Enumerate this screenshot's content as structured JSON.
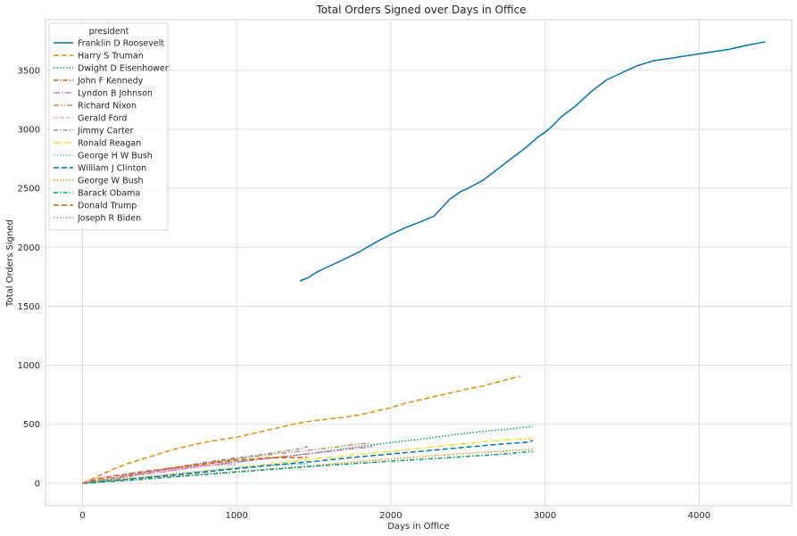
{
  "chart_data": {
    "type": "line",
    "title": "Total Orders Signed over Days in Office",
    "xlabel": "Days in Office",
    "ylabel": "Total Orders Signed",
    "xlim": [
      -240,
      4600
    ],
    "ylim": [
      -190,
      3930
    ],
    "xticks": [
      0,
      1000,
      2000,
      3000,
      4000
    ],
    "yticks": [
      0,
      500,
      1000,
      1500,
      2000,
      2500,
      3000,
      3500
    ],
    "grid": true,
    "legend": {
      "title": "president",
      "placement": "upper-left"
    },
    "series": [
      {
        "name": "Franklin D Roosevelt",
        "color": "#0173b2",
        "dash": "solid",
        "x": [
          1410,
          1460,
          1520,
          1600,
          1700,
          1800,
          1900,
          2000,
          2100,
          2200,
          2280,
          2320,
          2380,
          2450,
          2500,
          2600,
          2700,
          2800,
          2880,
          2950,
          3000,
          3050,
          3100,
          3200,
          3300,
          3400,
          3500,
          3600,
          3700,
          3800,
          3900,
          4000,
          4100,
          4200,
          4300,
          4400,
          4430
        ],
        "y": [
          1715,
          1740,
          1790,
          1840,
          1900,
          1965,
          2040,
          2110,
          2170,
          2220,
          2265,
          2320,
          2405,
          2470,
          2500,
          2570,
          2670,
          2770,
          2850,
          2930,
          2975,
          3030,
          3100,
          3200,
          3320,
          3420,
          3480,
          3540,
          3580,
          3600,
          3620,
          3640,
          3660,
          3680,
          3710,
          3735,
          3740
        ]
      },
      {
        "name": "Harry S Truman",
        "color": "#de8f05",
        "dash": "6,3",
        "x": [
          0,
          50,
          100,
          200,
          300,
          400,
          500,
          600,
          700,
          800,
          900,
          1000,
          1100,
          1200,
          1300,
          1400,
          1500,
          1600,
          1700,
          1800,
          1900,
          2000,
          2100,
          2200,
          2300,
          2400,
          2500,
          2600,
          2700,
          2800,
          2840
        ],
        "y": [
          0,
          30,
          60,
          120,
          170,
          210,
          250,
          290,
          320,
          350,
          370,
          390,
          420,
          450,
          480,
          510,
          530,
          545,
          560,
          580,
          610,
          640,
          680,
          710,
          740,
          770,
          800,
          825,
          860,
          895,
          905
        ]
      },
      {
        "name": "Dwight D Eisenhower",
        "color": "#029e73",
        "dash": "1.5,2",
        "x": [
          0,
          200,
          400,
          600,
          800,
          1000,
          1200,
          1400,
          1600,
          1800,
          2000,
          2200,
          2400,
          2600,
          2800,
          2920
        ],
        "y": [
          0,
          40,
          80,
          115,
          150,
          180,
          210,
          240,
          275,
          310,
          345,
          375,
          410,
          440,
          465,
          480
        ]
      },
      {
        "name": "John F Kennedy",
        "color": "#d55e00",
        "dash": "5,2,1.5,2",
        "x": [
          0,
          200,
          400,
          600,
          800,
          1000
        ],
        "y": [
          0,
          45,
          95,
          135,
          175,
          210
        ]
      },
      {
        "name": "Lyndon B Johnson",
        "color": "#cc78bc",
        "dash": "7,2,1.5,2",
        "x": [
          0,
          200,
          400,
          600,
          800,
          1000,
          1200,
          1400,
          1600,
          1800,
          1880
        ],
        "y": [
          0,
          35,
          75,
          110,
          150,
          180,
          210,
          240,
          270,
          300,
          310
        ]
      },
      {
        "name": "Richard Nixon",
        "color": "#ca9161",
        "dash": "6,2,1.5,2,1.5,2",
        "x": [
          0,
          200,
          400,
          600,
          800,
          1000,
          1200,
          1400,
          1600,
          1750,
          1860
        ],
        "y": [
          0,
          40,
          85,
          130,
          170,
          205,
          240,
          270,
          300,
          325,
          340
        ]
      },
      {
        "name": "Gerald Ford",
        "color": "#fbafe4",
        "dash": "5,2",
        "x": [
          0,
          200,
          400,
          600,
          800,
          895
        ],
        "y": [
          0,
          35,
          75,
          120,
          155,
          170
        ]
      },
      {
        "name": "Jimmy Carter",
        "color": "#949494",
        "dash": "5,2,1.5,2",
        "x": [
          0,
          200,
          400,
          600,
          800,
          1000,
          1200,
          1400,
          1460
        ],
        "y": [
          0,
          40,
          85,
          130,
          180,
          215,
          250,
          290,
          310
        ]
      },
      {
        "name": "Ronald Reagan",
        "color": "#ece133",
        "dash": "7,2,1.5,2",
        "x": [
          0,
          300,
          600,
          900,
          1200,
          1500,
          1800,
          2100,
          2400,
          2700,
          2920
        ],
        "y": [
          0,
          40,
          80,
          120,
          160,
          205,
          245,
          285,
          325,
          365,
          380
        ]
      },
      {
        "name": "George H W Bush",
        "color": "#56b4e9",
        "dash": "1.5,2",
        "x": [
          0,
          200,
          400,
          600,
          800,
          1000,
          1200,
          1460
        ],
        "y": [
          0,
          25,
          50,
          80,
          105,
          130,
          150,
          165
        ]
      },
      {
        "name": "William J Clinton",
        "color": "#0173b2",
        "dash": "6,3",
        "x": [
          0,
          300,
          600,
          900,
          1200,
          1500,
          1800,
          2100,
          2400,
          2700,
          2900,
          2920
        ],
        "y": [
          0,
          35,
          70,
          110,
          150,
          185,
          225,
          260,
          295,
          330,
          350,
          365
        ]
      },
      {
        "name": "George W Bush",
        "color": "#de8f05",
        "dash": "1.5,2",
        "x": [
          0,
          300,
          600,
          900,
          1200,
          1500,
          1800,
          2100,
          2400,
          2700,
          2920
        ],
        "y": [
          0,
          30,
          60,
          90,
          120,
          150,
          185,
          215,
          245,
          270,
          290
        ]
      },
      {
        "name": "Barack Obama",
        "color": "#029e73",
        "dash": "5,2,1.5,2",
        "x": [
          0,
          300,
          600,
          900,
          1200,
          1500,
          1800,
          2100,
          2400,
          2700,
          2920
        ],
        "y": [
          0,
          25,
          55,
          85,
          115,
          145,
          170,
          195,
          220,
          245,
          270
        ]
      },
      {
        "name": "Donald Trump",
        "color": "#d55e00",
        "dash": "6,3",
        "x": [
          0,
          100,
          200,
          400,
          600,
          800,
          1000,
          1200,
          1460
        ],
        "y": [
          0,
          35,
          60,
          100,
          130,
          165,
          195,
          215,
          220
        ]
      },
      {
        "name": "Joseph R Biden",
        "color": "#cc78bc",
        "dash": "1.5,2",
        "x": [
          0,
          50,
          100,
          200,
          400,
          600,
          800,
          1000
        ],
        "y": [
          0,
          30,
          45,
          65,
          95,
          125,
          150,
          160
        ]
      }
    ]
  }
}
